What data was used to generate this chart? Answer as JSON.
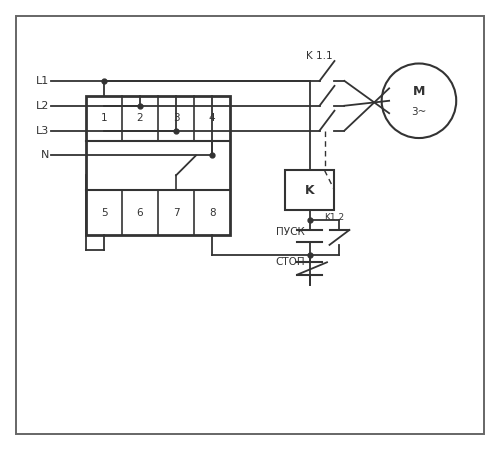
{
  "bg_color": "#ffffff",
  "line_color": "#333333",
  "border_color": "#666666",
  "fig_width": 5.0,
  "fig_height": 4.5,
  "dpi": 100,
  "labels_L": [
    "L1",
    "L2",
    "L3",
    "N"
  ],
  "terminal_top": [
    "1",
    "2",
    "3",
    "4"
  ],
  "terminal_bot": [
    "5",
    "6",
    "7",
    "8"
  ],
  "label_K1_1": "K 1.1",
  "label_K1_2": "K1.2",
  "label_K": "K",
  "label_PUSK": "ПУСК",
  "label_STOP": "СТОП",
  "label_M": "M",
  "label_3": "3~"
}
